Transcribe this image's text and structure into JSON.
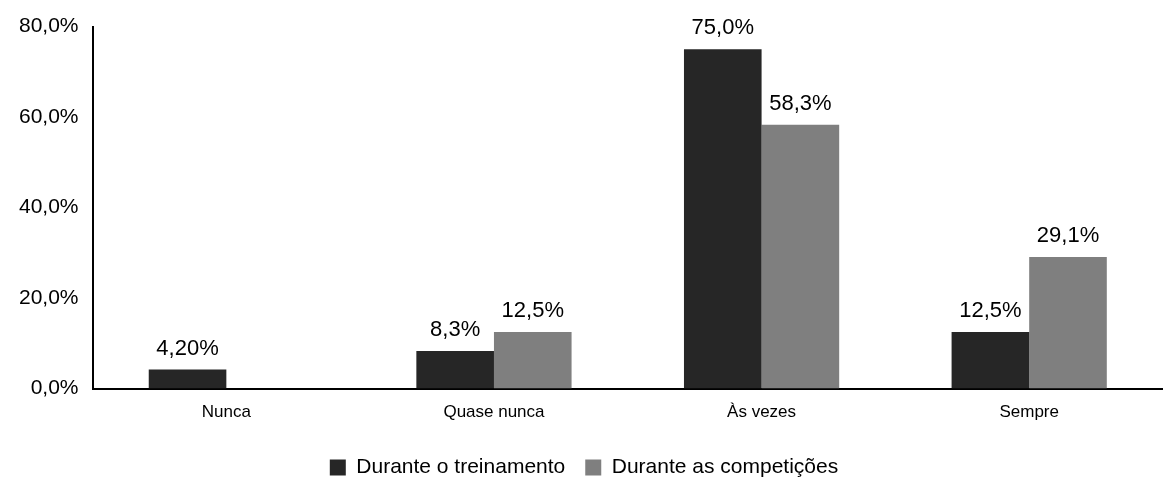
{
  "chart_data": {
    "type": "bar",
    "categories": [
      "Nunca",
      "Quase nunca",
      "Às vezes",
      "Sempre"
    ],
    "series": [
      {
        "name": "Durante o treinamento",
        "color": "#262626",
        "values": [
          4.2,
          8.3,
          75.0,
          12.5
        ],
        "value_labels": [
          "4,20%",
          "8,3%",
          "75,0%",
          "12,5%"
        ]
      },
      {
        "name": "Durante as competições",
        "color": "#7f7f7f",
        "values": [
          null,
          12.5,
          58.3,
          29.1
        ],
        "value_labels": [
          null,
          "12,5%",
          "58,3%",
          "29,1%"
        ]
      }
    ],
    "ylim": [
      0,
      80
    ],
    "yticks": [
      {
        "value": 0,
        "label": "0,0%"
      },
      {
        "value": 20,
        "label": "20,0%"
      },
      {
        "value": 40,
        "label": "40,0%"
      },
      {
        "value": 60,
        "label": "60,0%"
      },
      {
        "value": 80,
        "label": "80,0%"
      }
    ],
    "grid": false,
    "legend": "bottom"
  }
}
